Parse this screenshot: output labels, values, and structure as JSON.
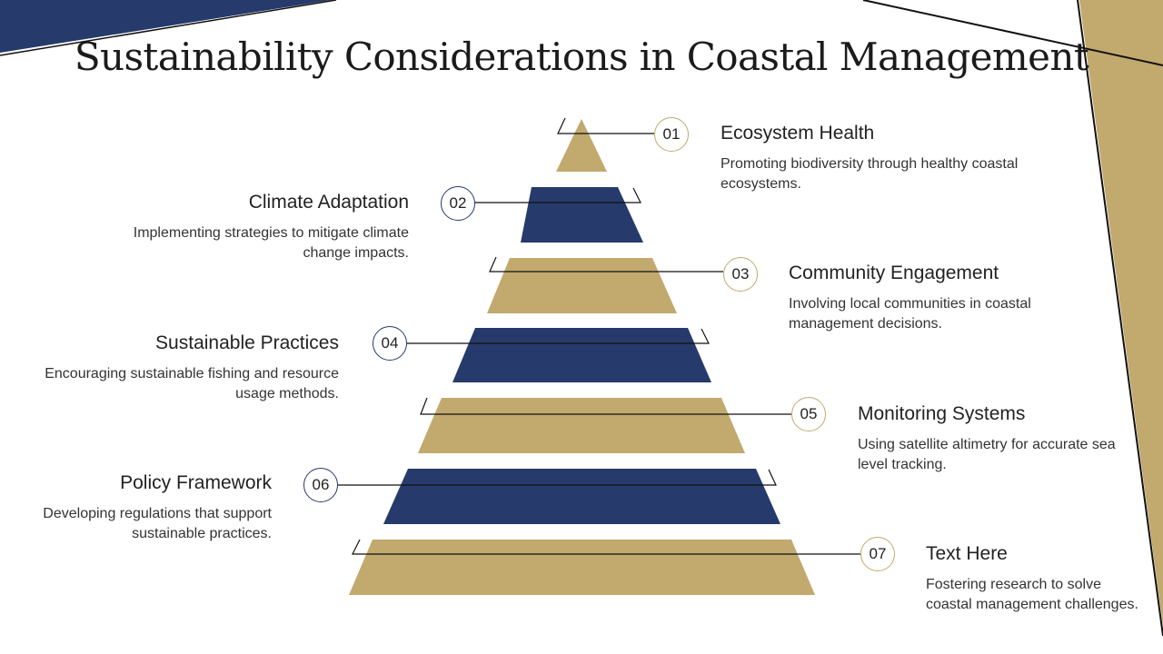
{
  "title": "Sustainability Considerations in Coastal Management",
  "colors": {
    "gold": "#c2a96e",
    "navy": "#263a6b",
    "line": "#111111"
  },
  "items": [
    {
      "num": "01",
      "heading": "Ecosystem Health",
      "description": "Promoting biodiversity through healthy coastal ecosystems."
    },
    {
      "num": "02",
      "heading": "Climate Adaptation",
      "description": "Implementing strategies to mitigate climate change impacts."
    },
    {
      "num": "03",
      "heading": "Community Engagement",
      "description": "Involving local communities in coastal management decisions."
    },
    {
      "num": "04",
      "heading": "Sustainable Practices",
      "description": "Encouraging sustainable fishing and resource usage methods."
    },
    {
      "num": "05",
      "heading": "Monitoring Systems",
      "description": "Using satellite altimetry for accurate sea level tracking."
    },
    {
      "num": "06",
      "heading": "Policy Framework",
      "description": "Developing regulations that support sustainable practices."
    },
    {
      "num": "07",
      "heading": "Text Here",
      "description": "Fostering research to solve coastal management challenges."
    }
  ]
}
